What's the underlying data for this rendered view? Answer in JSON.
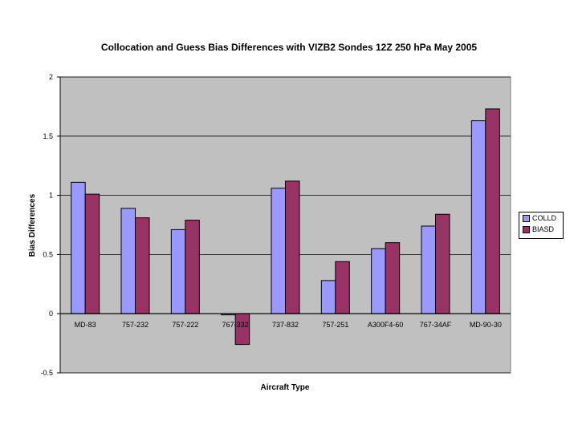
{
  "chart_data": {
    "type": "bar",
    "title": "Collocation and Guess Bias Differences with VIZB2 Sondes 12Z 250 hPa May 2005",
    "xlabel": "Aircraft Type",
    "ylabel": "Bias Differences",
    "categories": [
      "MD-83",
      "757-232",
      "757-222",
      "767-332",
      "737-832",
      "757-251",
      "A300F4-60",
      "767-34AF",
      "MD-90-30"
    ],
    "series": [
      {
        "name": "COLLD",
        "color": "#9999ff",
        "values": [
          1.11,
          0.89,
          0.71,
          -0.01,
          1.06,
          0.28,
          0.55,
          0.74,
          1.63
        ]
      },
      {
        "name": "BIASD",
        "color": "#993366",
        "values": [
          1.01,
          0.81,
          0.79,
          -0.26,
          1.12,
          0.44,
          0.6,
          0.84,
          1.73
        ]
      }
    ],
    "ylim": [
      -0.5,
      2
    ],
    "yticks": [
      -0.5,
      0,
      0.5,
      1,
      1.5,
      2
    ],
    "ytick_labels": [
      "-0.5",
      "0",
      "0.5",
      "1",
      "1.5",
      "2"
    ],
    "grid": true,
    "plot_background": "#c0c0c0",
    "legend_position": "right"
  }
}
